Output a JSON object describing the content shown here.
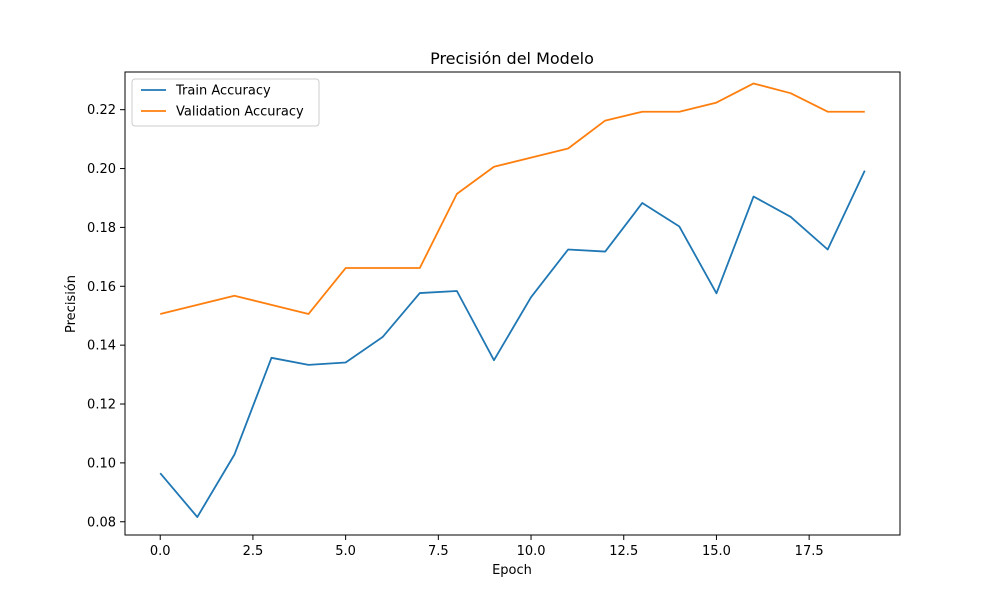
{
  "chart_data": {
    "type": "line",
    "title": "Precisión del Modelo",
    "xlabel": "Epoch",
    "ylabel": "Precisión",
    "xlim": [
      -0.95,
      19.95
    ],
    "ylim": [
      0.0755,
      0.2328
    ],
    "xticks": [
      0.0,
      2.5,
      5.0,
      7.5,
      10.0,
      12.5,
      15.0,
      17.5
    ],
    "xtick_labels": [
      "0.0",
      "2.5",
      "5.0",
      "7.5",
      "10.0",
      "12.5",
      "15.0",
      "17.5"
    ],
    "yticks": [
      0.08,
      0.1,
      0.12,
      0.14,
      0.16,
      0.18,
      0.2,
      0.22
    ],
    "ytick_labels": [
      "0.08",
      "0.10",
      "0.12",
      "0.14",
      "0.16",
      "0.18",
      "0.20",
      "0.22"
    ],
    "grid": false,
    "legend": "upper-left",
    "x": [
      0,
      1,
      2,
      3,
      4,
      5,
      6,
      7,
      8,
      9,
      10,
      11,
      12,
      13,
      14,
      15,
      16,
      17,
      18,
      19
    ],
    "series": [
      {
        "name": "Train Accuracy",
        "color": "#1f77b4",
        "values": [
          0.0965,
          0.0816,
          0.1028,
          0.1357,
          0.1333,
          0.1341,
          0.1428,
          0.1577,
          0.1584,
          0.1349,
          0.1563,
          0.1725,
          0.1718,
          0.1883,
          0.1803,
          0.1576,
          0.1905,
          0.1836,
          0.1725,
          0.1993
        ]
      },
      {
        "name": "Validation Accuracy",
        "color": "#ff7f0e",
        "values": [
          0.1506,
          0.1537,
          0.1568,
          0.1537,
          0.1506,
          0.1662,
          0.1662,
          0.1662,
          0.1914,
          0.2006,
          0.2037,
          0.2068,
          0.2163,
          0.2193,
          0.2193,
          0.2224,
          0.2289,
          0.2256,
          0.2193,
          0.2193
        ]
      }
    ]
  }
}
